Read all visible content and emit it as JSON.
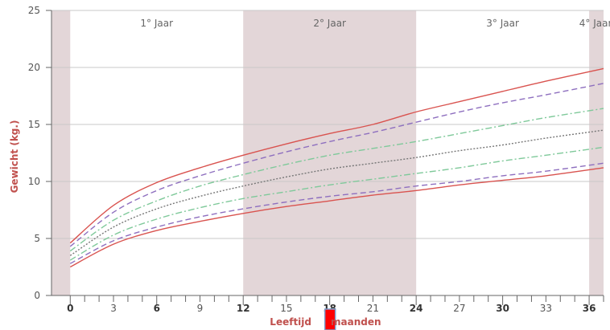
{
  "chart_data": {
    "type": "line",
    "title": "",
    "xlabel_left": "Leeftijd",
    "xlabel_right": "maanden",
    "ylabel": "Gewicht (kg.)",
    "xlim": [
      -1.3,
      37
    ],
    "ylim": [
      0,
      25
    ],
    "x_major_ticks": [
      0,
      6,
      12,
      18,
      24,
      30,
      36
    ],
    "x_minor_ticks": [
      3,
      9,
      15,
      21,
      27,
      33
    ],
    "y_ticks": [
      0,
      5,
      10,
      15,
      20,
      25
    ],
    "grid": true,
    "bands": [
      {
        "label": "1° Jaar",
        "from": 0,
        "to": 12,
        "shaded": false
      },
      {
        "label": "2° Jaar",
        "from": 12,
        "to": 24,
        "shaded": true
      },
      {
        "label": "3° Jaar",
        "from": 24,
        "to": 36,
        "shaded": false
      },
      {
        "label": "4° Jaar",
        "from": 36,
        "to": 37,
        "shaded": true
      }
    ],
    "x": [
      0,
      3,
      6,
      9,
      12,
      15,
      18,
      21,
      24,
      27,
      30,
      33,
      37
    ],
    "series": [
      {
        "style": "solid",
        "color": "#d9534f",
        "values": [
          4.6,
          7.9,
          9.9,
          11.2,
          12.3,
          13.3,
          14.2,
          15.0,
          16.1,
          17.0,
          17.9,
          18.8,
          19.9
        ]
      },
      {
        "style": "dashed",
        "color": "#8e6fbf",
        "values": [
          4.3,
          7.3,
          9.2,
          10.5,
          11.6,
          12.6,
          13.5,
          14.3,
          15.2,
          16.1,
          16.9,
          17.6,
          18.6
        ]
      },
      {
        "style": "dashdot",
        "color": "#7fc99a",
        "values": [
          3.9,
          6.6,
          8.3,
          9.6,
          10.6,
          11.5,
          12.3,
          12.9,
          13.5,
          14.2,
          14.9,
          15.6,
          16.4
        ]
      },
      {
        "style": "dotted",
        "color": "#777777",
        "values": [
          3.5,
          6.0,
          7.6,
          8.7,
          9.6,
          10.4,
          11.1,
          11.6,
          12.1,
          12.7,
          13.2,
          13.8,
          14.5
        ]
      },
      {
        "style": "dashdot",
        "color": "#7fc99a",
        "values": [
          3.1,
          5.3,
          6.7,
          7.7,
          8.5,
          9.1,
          9.7,
          10.2,
          10.7,
          11.2,
          11.8,
          12.3,
          13.0
        ]
      },
      {
        "style": "dashed",
        "color": "#8e6fbf",
        "values": [
          2.8,
          4.8,
          6.0,
          6.9,
          7.6,
          8.2,
          8.7,
          9.1,
          9.6,
          10.0,
          10.5,
          10.9,
          11.6
        ]
      },
      {
        "style": "solid",
        "color": "#d9534f",
        "values": [
          2.5,
          4.5,
          5.7,
          6.5,
          7.2,
          7.8,
          8.3,
          8.8,
          9.2,
          9.7,
          10.1,
          10.5,
          11.2
        ]
      }
    ],
    "marker": {
      "x": 18,
      "color": "#ff0000"
    }
  }
}
